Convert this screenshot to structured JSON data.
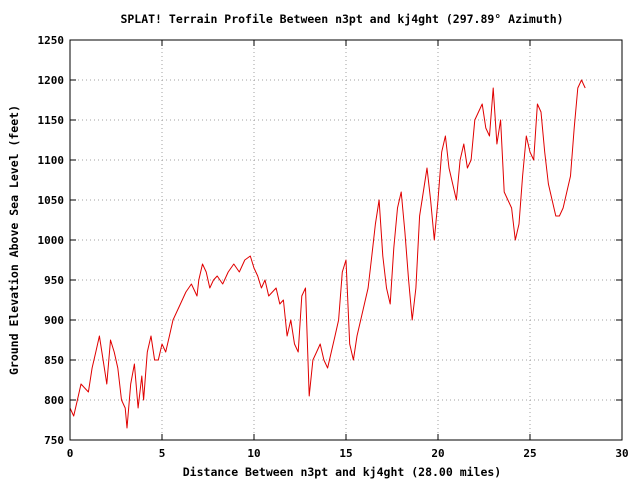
{
  "chart_data": {
    "type": "line",
    "title": "SPLAT! Terrain Profile Between n3pt and kj4ght (297.89° Azimuth)",
    "xlabel": "Distance Between n3pt and kj4ght (28.00 miles)",
    "ylabel": "Ground Elevation Above Sea Level (feet)",
    "xlim": [
      0,
      30
    ],
    "ylim": [
      750,
      1250
    ],
    "x_ticks": [
      0,
      5,
      10,
      15,
      20,
      25,
      30
    ],
    "y_ticks": [
      750,
      800,
      850,
      900,
      950,
      1000,
      1050,
      1100,
      1150,
      1200,
      1250
    ],
    "grid": true,
    "legend": "none",
    "series_color": "#e00000",
    "series": [
      {
        "x": [
          0,
          0.2,
          0.4,
          0.6,
          0.8,
          1.0,
          1.2,
          1.4,
          1.6,
          1.8,
          2.0,
          2.2,
          2.4,
          2.6,
          2.8,
          3.0,
          3.1,
          3.3,
          3.5,
          3.7,
          3.9,
          4.0,
          4.2,
          4.4,
          4.6,
          4.8,
          5.0,
          5.2,
          5.4,
          5.6,
          5.8,
          6.0,
          6.3,
          6.6,
          6.9,
          7.0,
          7.2,
          7.4,
          7.6,
          7.8,
          8.0,
          8.3,
          8.6,
          8.9,
          9.2,
          9.5,
          9.8,
          10.0,
          10.2,
          10.4,
          10.6,
          10.8,
          11.0,
          11.2,
          11.4,
          11.6,
          11.8,
          12.0,
          12.2,
          12.4,
          12.6,
          12.8,
          13.0,
          13.2,
          13.4,
          13.6,
          13.8,
          14.0,
          14.2,
          14.4,
          14.6,
          14.8,
          15.0,
          15.2,
          15.4,
          15.6,
          15.8,
          16.0,
          16.2,
          16.4,
          16.6,
          16.8,
          17.0,
          17.2,
          17.4,
          17.6,
          17.8,
          18.0,
          18.2,
          18.4,
          18.6,
          18.8,
          19.0,
          19.2,
          19.4,
          19.6,
          19.8,
          20.0,
          20.2,
          20.4,
          20.6,
          20.8,
          21.0,
          21.2,
          21.4,
          21.6,
          21.8,
          22.0,
          22.2,
          22.4,
          22.6,
          22.8,
          23.0,
          23.2,
          23.4,
          23.6,
          23.8,
          24.0,
          24.2,
          24.4,
          24.6,
          24.8,
          25.0,
          25.2,
          25.4,
          25.6,
          25.8,
          26.0,
          26.2,
          26.4,
          26.6,
          26.8,
          27.0,
          27.2,
          27.4,
          27.6,
          27.8,
          28.0
        ],
        "y": [
          790,
          780,
          800,
          820,
          815,
          810,
          840,
          860,
          880,
          850,
          820,
          875,
          860,
          840,
          800,
          790,
          765,
          820,
          845,
          790,
          830,
          800,
          860,
          880,
          850,
          850,
          870,
          860,
          880,
          900,
          910,
          920,
          935,
          945,
          930,
          950,
          970,
          960,
          940,
          950,
          955,
          945,
          960,
          970,
          960,
          975,
          980,
          965,
          955,
          940,
          950,
          930,
          935,
          940,
          920,
          925,
          880,
          900,
          870,
          860,
          930,
          940,
          805,
          850,
          860,
          870,
          850,
          840,
          860,
          880,
          900,
          960,
          975,
          870,
          850,
          880,
          900,
          920,
          940,
          980,
          1020,
          1050,
          980,
          940,
          920,
          990,
          1040,
          1060,
          1010,
          950,
          900,
          940,
          1030,
          1060,
          1090,
          1050,
          1000,
          1050,
          1110,
          1130,
          1090,
          1070,
          1050,
          1100,
          1120,
          1090,
          1100,
          1150,
          1160,
          1170,
          1140,
          1130,
          1190,
          1120,
          1150,
          1060,
          1050,
          1040,
          1000,
          1020,
          1080,
          1130,
          1110,
          1100,
          1170,
          1160,
          1110,
          1070,
          1050,
          1030,
          1030,
          1040,
          1060,
          1080,
          1140,
          1190,
          1200,
          1190
        ]
      }
    ]
  }
}
